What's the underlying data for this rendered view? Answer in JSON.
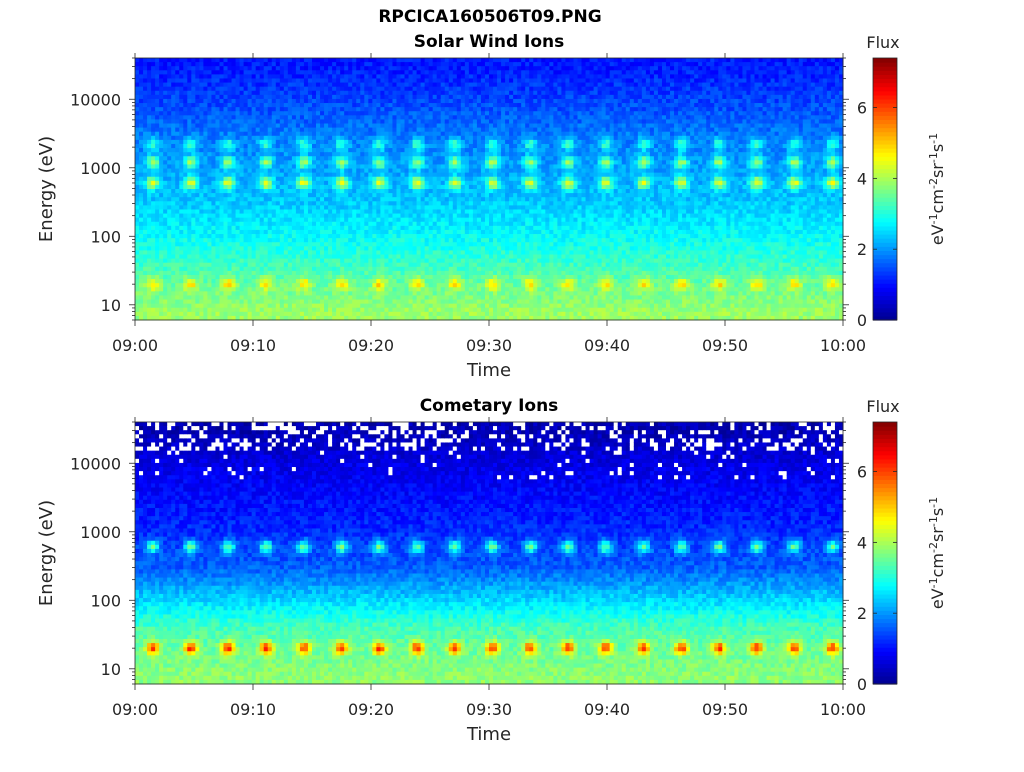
{
  "figure": {
    "title": "RPCICA160506T09.PNG"
  },
  "colormap": {
    "name": "jet",
    "stops": [
      "#00008f",
      "#0000ff",
      "#0080ff",
      "#00ffff",
      "#80ff80",
      "#ffff00",
      "#ff8000",
      "#ff0000",
      "#800000"
    ]
  },
  "chart_data": [
    {
      "type": "heatmap",
      "title": "Solar Wind Ions",
      "xlabel": "Time",
      "ylabel": "Energy (eV)",
      "x_ticks": [
        "09:00",
        "09:10",
        "09:20",
        "09:30",
        "09:40",
        "09:50",
        "10:00"
      ],
      "xlim": [
        "09:00",
        "10:00"
      ],
      "y_scale": "log",
      "ylim": [
        6,
        40000
      ],
      "y_ticks": [
        10,
        100,
        1000,
        10000
      ],
      "y_tick_labels": [
        "10",
        "100",
        "1000",
        "10000"
      ],
      "colorbar": {
        "label": "Flux",
        "units": "eV-1cm-2sr-1s-1",
        "range": [
          0,
          7.4
        ],
        "ticks": [
          0,
          2,
          4,
          6
        ]
      },
      "pulse_period_min": 3.2,
      "pulse_times": [
        "09:01.5",
        "09:04.7",
        "09:07.9",
        "09:11.1",
        "09:14.3",
        "09:17.5",
        "09:20.7",
        "09:23.9",
        "09:27.1",
        "09:30.3",
        "09:33.5",
        "09:36.7",
        "09:39.9",
        "09:43.1",
        "09:46.3",
        "09:49.5",
        "09:52.7",
        "09:55.9",
        "09:59.1"
      ],
      "energy_bands": [
        {
          "energy_eV": 30000,
          "flux": 1.1
        },
        {
          "energy_eV": 10000,
          "flux": 1.4
        },
        {
          "energy_eV": 3000,
          "flux": 1.8
        },
        {
          "energy_eV": 2200,
          "flux_peak": 3.2
        },
        {
          "energy_eV": 1200,
          "flux_peak": 4.0
        },
        {
          "energy_eV": 600,
          "flux_peak": 4.5
        },
        {
          "energy_eV": 300,
          "flux": 2.4
        },
        {
          "energy_eV": 100,
          "flux": 2.8
        },
        {
          "energy_eV": 40,
          "flux": 3.2
        },
        {
          "energy_eV": 20,
          "flux_peak": 4.9
        },
        {
          "energy_eV": 8,
          "flux": 3.9
        }
      ]
    },
    {
      "type": "heatmap",
      "title": "Cometary Ions",
      "xlabel": "Time",
      "ylabel": "Energy (eV)",
      "x_ticks": [
        "09:00",
        "09:10",
        "09:20",
        "09:30",
        "09:40",
        "09:50",
        "10:00"
      ],
      "xlim": [
        "09:00",
        "10:00"
      ],
      "y_scale": "log",
      "ylim": [
        6,
        40000
      ],
      "y_ticks": [
        10,
        100,
        1000,
        10000
      ],
      "y_tick_labels": [
        "10",
        "100",
        "1000",
        "10000"
      ],
      "colorbar": {
        "label": "Flux",
        "units": "eV-1cm-2sr-1s-1",
        "range": [
          0,
          7.4
        ],
        "ticks": [
          0,
          2,
          4,
          6
        ]
      },
      "pulse_period_min": 3.2,
      "pulse_times": [
        "09:01.5",
        "09:04.7",
        "09:07.9",
        "09:11.1",
        "09:14.3",
        "09:17.5",
        "09:20.7",
        "09:23.9",
        "09:27.1",
        "09:30.3",
        "09:33.5",
        "09:36.7",
        "09:39.9",
        "09:43.1",
        "09:46.3",
        "09:49.5",
        "09:52.7",
        "09:55.9",
        "09:59.1"
      ],
      "energy_bands": [
        {
          "energy_eV": 30000,
          "flux": 0.3,
          "gaps": true
        },
        {
          "energy_eV": 10000,
          "flux": 0.7
        },
        {
          "energy_eV": 3000,
          "flux": 1.0
        },
        {
          "energy_eV": 1200,
          "flux": 1.2
        },
        {
          "energy_eV": 600,
          "flux_peak": 3.6
        },
        {
          "energy_eV": 300,
          "flux": 1.6
        },
        {
          "energy_eV": 100,
          "flux": 2.5
        },
        {
          "energy_eV": 40,
          "flux": 3.3
        },
        {
          "energy_eV": 20,
          "flux_peak": 6.2
        },
        {
          "energy_eV": 8,
          "flux": 3.8
        }
      ]
    }
  ]
}
